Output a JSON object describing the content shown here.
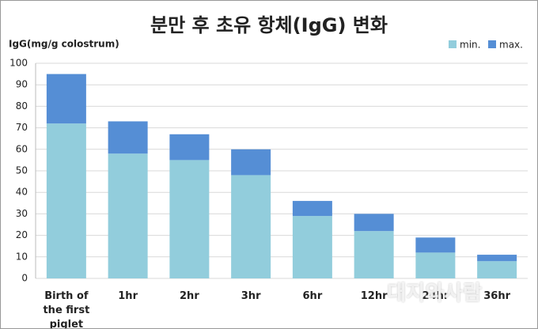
{
  "chart_data": {
    "type": "stacked_bar",
    "title": "분만 후 초유 항체(IgG) 변화",
    "y_label": "IgG(mg/g colostrum)",
    "categories": [
      "Birth of the first piglet",
      "1hr",
      "2hr",
      "3hr",
      "6hr",
      "12hr",
      "24hr",
      "36hr"
    ],
    "series": [
      {
        "name": "min.",
        "color": "#92cddc",
        "values": [
          72,
          58,
          55,
          48,
          29,
          22,
          12,
          8
        ]
      },
      {
        "name": "max.",
        "color": "#558ed5",
        "values": [
          23,
          15,
          12,
          12,
          7,
          8,
          7,
          3
        ]
      }
    ],
    "ylim": [
      0,
      100
    ],
    "yticks": [
      0,
      10,
      20,
      30,
      40,
      50,
      60,
      70,
      80,
      90,
      100
    ],
    "grid": true,
    "legend": "top-right",
    "watermark": "대지와사람"
  }
}
